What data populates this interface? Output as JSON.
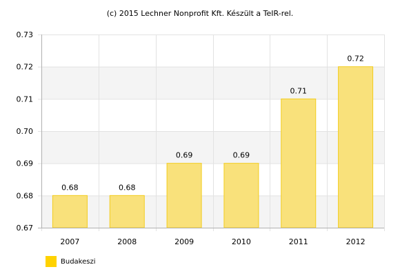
{
  "credit": "(c) 2015 Lechner Nonprofit Kft. Készült a TeIR-rel.",
  "chart_data": {
    "type": "bar",
    "categories": [
      "2007",
      "2008",
      "2009",
      "2010",
      "2011",
      "2012"
    ],
    "series": [
      {
        "name": "Budakeszi",
        "values": [
          0.68,
          0.68,
          0.69,
          0.69,
          0.71,
          0.72
        ],
        "labels": [
          "0.68",
          "0.68",
          "0.69",
          "0.69",
          "0.71",
          "0.72"
        ]
      }
    ],
    "ylim": [
      0.67,
      0.73
    ],
    "yticks": [
      "0.67",
      "0.68",
      "0.69",
      "0.70",
      "0.71",
      "0.72",
      "0.73"
    ],
    "grid": true,
    "legend": "bottom-left",
    "colors": {
      "bar_fill": "#f9e17b",
      "bar_stroke": "#f2cc1e",
      "legend_swatch": "#ffd200",
      "band": "#f4f4f4",
      "axis": "#b0b0b0"
    }
  }
}
